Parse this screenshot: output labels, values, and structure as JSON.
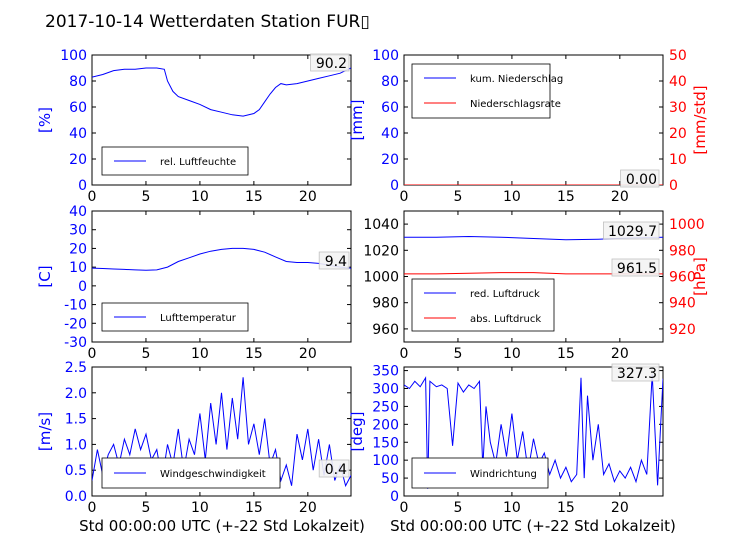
{
  "title": "2017-10-14 Wetterdaten Station FUR▯",
  "x_axis_label": "Std 00:00:00 UTC (+-22 Std Lokalzeit)",
  "colors": {
    "primary": "#0000ff",
    "secondary": "#ff0000",
    "axis": "#000000"
  },
  "chart_data": [
    {
      "type": "line",
      "id": "humidity",
      "ylabel": "[%]",
      "xlim": [
        0,
        24
      ],
      "ylim": [
        0,
        100
      ],
      "xticks": [
        0,
        5,
        10,
        15,
        20
      ],
      "yticks": [
        0,
        20,
        40,
        60,
        80,
        100
      ],
      "value_label": "90.2",
      "legend": [
        "rel. Luftfeuchte"
      ],
      "legend_position": "lower-left",
      "series": [
        {
          "name": "rel. Luftfeuchte",
          "color": "#0000ff",
          "x": [
            0,
            1,
            2,
            3,
            4,
            5,
            6,
            6.7,
            7,
            7.5,
            8,
            9,
            10,
            11,
            12,
            13,
            14,
            15,
            15.5,
            16,
            16.5,
            17,
            17.5,
            18,
            19,
            20,
            21,
            22,
            23,
            24
          ],
          "y": [
            83,
            85,
            88,
            89,
            89,
            90,
            90,
            89,
            80,
            72,
            68,
            65,
            62,
            58,
            56,
            54,
            53,
            55,
            58,
            64,
            70,
            75,
            78,
            77,
            78,
            80,
            82,
            84,
            86,
            90
          ]
        }
      ]
    },
    {
      "type": "line",
      "id": "precip",
      "ylabel": "[mm]",
      "ylabel_right": "[mm/std]",
      "xlim": [
        0,
        24
      ],
      "ylim": [
        0,
        100
      ],
      "ylim_right": [
        0,
        50
      ],
      "xticks": [
        0,
        5,
        10,
        15,
        20
      ],
      "yticks": [
        0,
        20,
        40,
        60,
        80,
        100
      ],
      "yticks_right": [
        0,
        10,
        20,
        30,
        40,
        50
      ],
      "value_label": "0.00",
      "legend": [
        "kum. Niederschlag",
        "Niederschlagsrate"
      ],
      "legend_position": "upper-left",
      "series": [
        {
          "name": "kum. Niederschlag",
          "color": "#0000ff",
          "x": [
            0,
            24
          ],
          "y": [
            0,
            0
          ]
        },
        {
          "name": "Niederschlagsrate",
          "color": "#ff0000",
          "x": [
            0,
            24
          ],
          "y": [
            0,
            0
          ]
        }
      ]
    },
    {
      "type": "line",
      "id": "temperature",
      "ylabel": "[C]",
      "xlim": [
        0,
        24
      ],
      "ylim": [
        -30,
        40
      ],
      "xticks": [
        0,
        5,
        10,
        15,
        20
      ],
      "yticks": [
        -30,
        -20,
        -10,
        0,
        10,
        20,
        30,
        40
      ],
      "value_label": "9.4",
      "legend": [
        "Lufttemperatur"
      ],
      "legend_position": "lower-left",
      "series": [
        {
          "name": "Lufttemperatur",
          "color": "#0000ff",
          "x": [
            0,
            1,
            2,
            3,
            4,
            5,
            6,
            7,
            8,
            9,
            10,
            11,
            12,
            13,
            14,
            15,
            16,
            17,
            18,
            19,
            20,
            21,
            22,
            23,
            24
          ],
          "y": [
            9.5,
            9.3,
            9.0,
            8.8,
            8.5,
            8.3,
            8.5,
            10,
            13,
            15,
            17,
            18.5,
            19.5,
            20,
            20,
            19.5,
            18,
            15.5,
            13,
            12.5,
            12.5,
            12,
            11,
            10,
            9.4
          ]
        }
      ]
    },
    {
      "type": "line",
      "id": "pressure",
      "ylim": [
        950,
        1050
      ],
      "ylim_right": [
        910,
        1010
      ],
      "xlim": [
        0,
        24
      ],
      "xticks": [
        0,
        5,
        10,
        15,
        20
      ],
      "yticks": [
        960,
        980,
        1000,
        1020,
        1040
      ],
      "yticks_right": [
        920,
        940,
        960,
        980,
        1000
      ],
      "ylabel_right": "[hPa]",
      "value_labels": [
        "1029.7",
        "961.5"
      ],
      "legend": [
        "red. Luftdruck",
        "abs. Luftdruck"
      ],
      "legend_position": "lower-left",
      "series": [
        {
          "name": "red. Luftdruck",
          "color": "#0000ff",
          "x": [
            0,
            3,
            6,
            9,
            12,
            15,
            18,
            21,
            24
          ],
          "y": [
            1030,
            1030,
            1030.5,
            1030,
            1029,
            1028,
            1028.5,
            1029.5,
            1030
          ]
        },
        {
          "name": "abs. Luftdruck",
          "color": "#ff0000",
          "x": [
            0,
            3,
            6,
            9,
            12,
            15,
            18,
            21,
            24
          ],
          "y": [
            962,
            962,
            962.5,
            963,
            963,
            962,
            962,
            962,
            962
          ]
        }
      ]
    },
    {
      "type": "line",
      "id": "wind_speed",
      "ylabel": "[m/s]",
      "xlim": [
        0,
        24
      ],
      "ylim": [
        0,
        2.5
      ],
      "xticks": [
        0,
        5,
        10,
        15,
        20
      ],
      "yticks": [
        0.0,
        0.5,
        1.0,
        1.5,
        2.0,
        2.5
      ],
      "value_label": "0.4",
      "legend": [
        "Windgeschwindigkeit"
      ],
      "legend_position": "lower-left",
      "series": [
        {
          "name": "Windgeschwindigkeit",
          "color": "#0000ff",
          "x": [
            0,
            0.5,
            1,
            1.5,
            2,
            2.5,
            3,
            3.5,
            4,
            4.5,
            5,
            5.5,
            6,
            6.5,
            7,
            7.5,
            8,
            8.5,
            9,
            9.5,
            10,
            10.5,
            11,
            11.5,
            12,
            12.5,
            13,
            13.5,
            14,
            14.5,
            15,
            15.5,
            16,
            16.5,
            17,
            17.5,
            18,
            18.5,
            19,
            19.5,
            20,
            20.5,
            21,
            21.5,
            22,
            22.5,
            23,
            23.5,
            24
          ],
          "y": [
            0.3,
            0.9,
            0.4,
            0.8,
            1.0,
            0.6,
            1.1,
            0.8,
            1.3,
            0.9,
            1.2,
            0.7,
            0.9,
            0.3,
            1.0,
            0.6,
            1.3,
            0.5,
            1.1,
            0.8,
            1.6,
            0.7,
            1.8,
            1.0,
            2.0,
            0.9,
            1.9,
            1.1,
            2.3,
            1.0,
            1.4,
            0.8,
            1.5,
            0.6,
            0.9,
            0.3,
            0.6,
            0.2,
            1.2,
            0.7,
            1.3,
            0.5,
            1.1,
            0.4,
            1.0,
            0.3,
            0.6,
            0.2,
            0.4
          ]
        }
      ]
    },
    {
      "type": "line",
      "id": "wind_dir",
      "ylabel": "[deg]",
      "xlim": [
        0,
        24
      ],
      "ylim": [
        0,
        360
      ],
      "xticks": [
        0,
        5,
        10,
        15,
        20
      ],
      "yticks": [
        0,
        50,
        100,
        150,
        200,
        250,
        300,
        350
      ],
      "value_label": "327.3",
      "legend": [
        "Windrichtung"
      ],
      "legend_position": "lower-left",
      "series": [
        {
          "name": "Windrichtung",
          "color": "#0000ff",
          "x": [
            0,
            0.5,
            1,
            1.5,
            2,
            2.2,
            2.4,
            3,
            3.5,
            4,
            4.5,
            5,
            5.5,
            6,
            6.5,
            7,
            7.3,
            7.6,
            8,
            8.5,
            9,
            9.5,
            10,
            10.5,
            11,
            11.5,
            12,
            12.5,
            13,
            13.5,
            14,
            14.5,
            15,
            15.5,
            16,
            16.4,
            16.7,
            17,
            17.5,
            18,
            18.5,
            19,
            19.5,
            20,
            20.5,
            21,
            21.5,
            22,
            22.5,
            23,
            23.5,
            24
          ],
          "y": [
            310,
            300,
            320,
            305,
            330,
            20,
            320,
            305,
            310,
            300,
            140,
            315,
            290,
            310,
            300,
            320,
            80,
            250,
            150,
            90,
            200,
            110,
            230,
            100,
            180,
            70,
            160,
            90,
            120,
            60,
            100,
            50,
            80,
            40,
            60,
            330,
            50,
            280,
            100,
            200,
            60,
            90,
            40,
            70,
            50,
            80,
            40,
            100,
            60,
            340,
            30,
            327
          ]
        }
      ]
    }
  ]
}
